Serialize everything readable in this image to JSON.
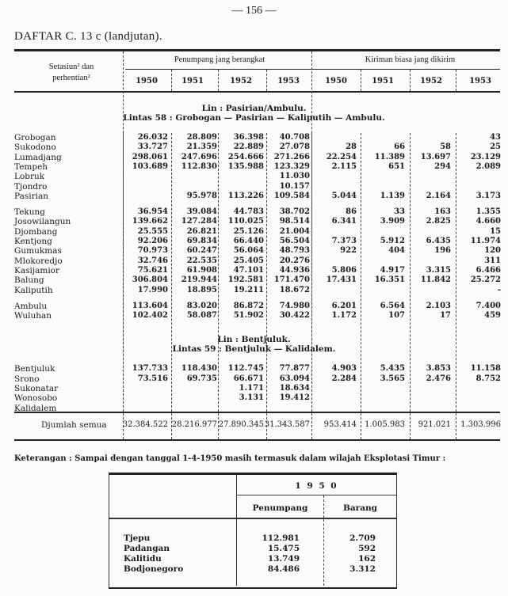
{
  "page_number": "— 156 —",
  "title": "DAFTAR C. 13 c (landjutan).",
  "header": {
    "station_label": "Setasiun² dan perhentian²",
    "group_passengers": "Penumpang jang berangkat",
    "group_goods": "Kiriman biasa jang dikirim",
    "years": [
      "1950",
      "1951",
      "1952",
      "1953",
      "1950",
      "1951",
      "1952",
      "1953"
    ]
  },
  "sections": [
    {
      "line": "Lin : Pasirian/Ambulu.",
      "route": "Lintas 58 : Grobogan — Pasirian — Kaliputih — Ambulu.",
      "rows": [
        {
          "name": "Grobogan",
          "values": [
            "26.032",
            "28.809",
            "36.398",
            "40.708",
            "",
            "",
            "",
            "43"
          ]
        },
        {
          "name": "Sukodono",
          "values": [
            "33.727",
            "21.359",
            "22.889",
            "27.078",
            "28",
            "66",
            "58",
            "25"
          ]
        },
        {
          "name": "Lumadjang",
          "values": [
            "298.061",
            "247.696",
            "254.666",
            "271.266",
            "22.254",
            "11.389",
            "13.697",
            "23.129"
          ]
        },
        {
          "name": "Tempeh",
          "values": [
            "103.689",
            "112.830",
            "135.988",
            "123.329",
            "2.115",
            "651",
            "294",
            "2.089"
          ]
        },
        {
          "name": "Lobruk",
          "values": [
            "",
            "",
            "",
            "11.030",
            "",
            "",
            "",
            ""
          ]
        },
        {
          "name": "Tjondro",
          "values": [
            "",
            "",
            "",
            "10.157",
            "",
            "",
            "",
            ""
          ]
        },
        {
          "name": "Pasirian",
          "values": [
            "",
            "95.978",
            "113.226",
            "109.584",
            "5.044",
            "1.139",
            "2.164",
            "3.173"
          ]
        },
        {
          "gap": true
        },
        {
          "name": "Tekung",
          "values": [
            "36.954",
            "39.084",
            "44.783",
            "38.702",
            "86",
            "33",
            "163",
            "1.355"
          ]
        },
        {
          "name": "Josowilangun",
          "values": [
            "139.662",
            "127.284",
            "110.025",
            "98.514",
            "6.341",
            "3.909",
            "2.825",
            "4.660"
          ]
        },
        {
          "name": "Djombang",
          "values": [
            "25.555",
            "26.821",
            "25.126",
            "21.004",
            "",
            "",
            "",
            "15"
          ]
        },
        {
          "name": "Kentjong",
          "values": [
            "92.206",
            "69.834",
            "66.440",
            "56.504",
            "7.373",
            "5.912",
            "6.435",
            "11.974"
          ]
        },
        {
          "name": "Gumukmas",
          "values": [
            "70.973",
            "60.247",
            "56.064",
            "48.793",
            "922",
            "404",
            "196",
            "120"
          ]
        },
        {
          "name": "Mlokoredjo",
          "values": [
            "32.746",
            "22.535",
            "25.405",
            "20.276",
            "",
            "",
            "",
            "311"
          ]
        },
        {
          "name": "Kasijamior",
          "values": [
            "75.621",
            "61.908",
            "47.101",
            "44.936",
            "5.806",
            "4.917",
            "3.315",
            "6.466"
          ]
        },
        {
          "name": "Balung",
          "values": [
            "306.804",
            "219.944",
            "192.581",
            "171.470",
            "17.431",
            "16.351",
            "11.842",
            "25.272"
          ]
        },
        {
          "name": "Kaliputih",
          "values": [
            "17.990",
            "18.895",
            "19.211",
            "18.672",
            "",
            "",
            "",
            "-"
          ]
        },
        {
          "gap": true
        },
        {
          "name": "Ambulu",
          "values": [
            "113.604",
            "83.020",
            "86.872",
            "74.980",
            "6.201",
            "6.564",
            "2.103",
            "7.400"
          ]
        },
        {
          "name": "Wuluhan",
          "values": [
            "102.402",
            "58.087",
            "51.902",
            "30.422",
            "1.172",
            "107",
            "17",
            "459"
          ]
        }
      ]
    },
    {
      "line": "Lin : Bentjuluk.",
      "route": "Lintas 59 : Bentjuluk — Kalidalem.",
      "rows": [
        {
          "name": "Bentjuluk",
          "values": [
            "137.733",
            "118.430",
            "112.745",
            "77.877",
            "4.903",
            "5.435",
            "3.853",
            "11.158"
          ]
        },
        {
          "name": "Srono",
          "values": [
            "73.516",
            "69.735",
            "66.671",
            "63.094",
            "2.284",
            "3.565",
            "2.476",
            "8.752"
          ]
        },
        {
          "name": "Sukonatar",
          "values": [
            "",
            "",
            "1.171",
            "18.634",
            "",
            "",
            "",
            ""
          ]
        },
        {
          "name": "Wonosobo",
          "values": [
            "",
            "",
            "3.131",
            "19.412",
            "",
            "",
            "",
            ""
          ]
        },
        {
          "name": "Kalidalem",
          "values": [
            "",
            "",
            "",
            "",
            "",
            "",
            "",
            ""
          ]
        }
      ]
    }
  ],
  "total": {
    "label": "Djumlah semua",
    "values": [
      "32.384.522",
      "28.216.977",
      "27.890.345",
      "31.343.587",
      "953.414",
      "1.005.983",
      "921.021",
      "1.303.996"
    ]
  },
  "note": "Keterangan : Sampai dengan tanggal 1-4-1950 masih termasuk dalam wilajah Eksplotasi Timur :",
  "sub_table": {
    "year": "1 9 5 0",
    "col_passengers": "Penumpang",
    "col_goods": "Barang",
    "rows": [
      {
        "name": "Tjepu",
        "passengers": "112.981",
        "goods": "2.709"
      },
      {
        "name": "Padangan",
        "passengers": "15.475",
        "goods": "592"
      },
      {
        "name": "Kalitidu",
        "passengers": "13.749",
        "goods": "162"
      },
      {
        "name": "Bodjonegoro",
        "passengers": "84.486",
        "goods": "3.312"
      }
    ]
  }
}
